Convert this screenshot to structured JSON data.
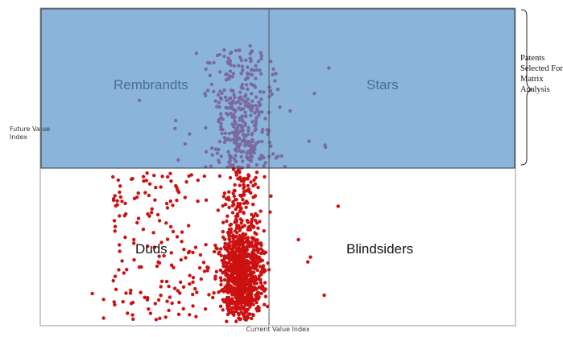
{
  "chart_data": {
    "type": "scatter",
    "xlabel": "Current Value Index",
    "ylabel": "Future Value Index",
    "grid": false,
    "quadrants": {
      "top_left": "Rembrandts",
      "top_right": "Stars",
      "bottom_left": "Duds",
      "bottom_right": "Blindsiders"
    },
    "selection_label": "Patents Selected For Matrix Analysis",
    "colors": {
      "selected_region": "#8ab4dc",
      "selected_points": "#7a6aa0",
      "points": "#cc1111",
      "quadrant_text_top": "#4a6e94",
      "quadrant_text_bottom": "#111111"
    }
  }
}
